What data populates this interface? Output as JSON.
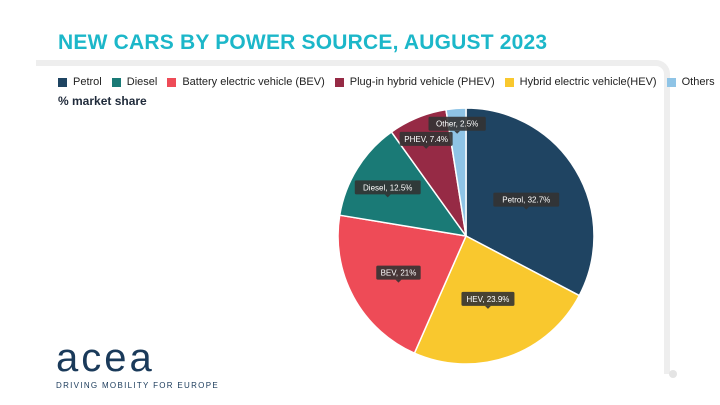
{
  "title": "NEW CARS BY POWER SOURCE, AUGUST 2023",
  "subtitle": "% market share",
  "legend": [
    {
      "label": "Petrol",
      "color": "#1f4462"
    },
    {
      "label": "Diesel",
      "color": "#1a7a76"
    },
    {
      "label": "Battery electric vehicle (BEV)",
      "color": "#ee4b57"
    },
    {
      "label": "Plug-in hybrid vehicle (PHEV)",
      "color": "#962a45"
    },
    {
      "label": "Hybrid electric vehicle(HEV)",
      "color": "#f9c82e"
    },
    {
      "label": "Others",
      "color": "#8fc4e6"
    }
  ],
  "chart_data": {
    "type": "pie",
    "title": "NEW CARS BY POWER SOURCE, AUGUST 2023",
    "subtitle": "% market share",
    "legend_position": "top-left",
    "slices": [
      {
        "name": "Petrol",
        "value": 32.7,
        "label": "Petrol, 32.7%",
        "color": "#1f4462"
      },
      {
        "name": "HEV",
        "value": 23.9,
        "label": "HEV, 23.9%",
        "color": "#f9c82e"
      },
      {
        "name": "BEV",
        "value": 21,
        "label": "BEV, 21%",
        "color": "#ee4b57"
      },
      {
        "name": "Diesel",
        "value": 12.5,
        "label": "Diesel, 12.5%",
        "color": "#1a7a76"
      },
      {
        "name": "PHEV",
        "value": 7.4,
        "label": "PHEV, 7.4%",
        "color": "#962a45"
      },
      {
        "name": "Other",
        "value": 2.5,
        "label": "Other, 2.5%",
        "color": "#8fc4e6"
      }
    ]
  },
  "logo": {
    "word": "acea",
    "tagline": "DRIVING MOBILITY FOR EUROPE"
  }
}
